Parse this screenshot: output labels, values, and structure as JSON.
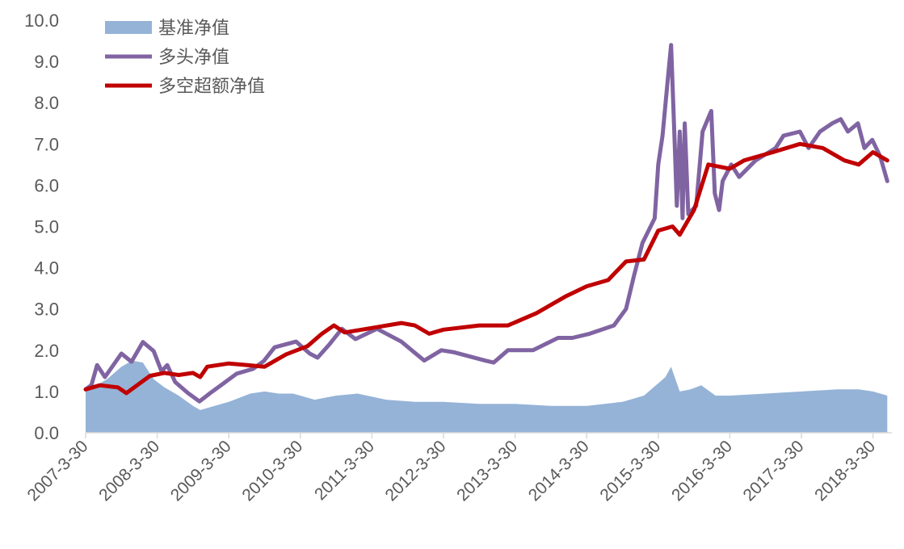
{
  "chart_data": {
    "type": "area+line",
    "title": "",
    "xlabel": "",
    "ylabel": "",
    "ylim": [
      0,
      10
    ],
    "xlim": [
      2007.25,
      2018.48
    ],
    "grid": false,
    "legend_position": "top-left",
    "y_ticks": [
      "0.0",
      "1.0",
      "2.0",
      "3.0",
      "4.0",
      "5.0",
      "6.0",
      "7.0",
      "8.0",
      "9.0",
      "10.0"
    ],
    "x_ticks": [
      {
        "label": "2007-3-30",
        "x": 2007.25
      },
      {
        "label": "2008-3-30",
        "x": 2008.25
      },
      {
        "label": "2009-3-30",
        "x": 2009.25
      },
      {
        "label": "2010-3-30",
        "x": 2010.25
      },
      {
        "label": "2011-3-30",
        "x": 2011.25
      },
      {
        "label": "2012-3-30",
        "x": 2012.25
      },
      {
        "label": "2013-3-30",
        "x": 2013.25
      },
      {
        "label": "2014-3-30",
        "x": 2014.25
      },
      {
        "label": "2015-3-30",
        "x": 2015.25
      },
      {
        "label": "2016-3-30",
        "x": 2016.25
      },
      {
        "label": "2017-3-30",
        "x": 2017.25
      },
      {
        "label": "2018-3-30",
        "x": 2018.25
      }
    ],
    "series": [
      {
        "name": "基准净值",
        "kind": "area",
        "color": "#95B3D7",
        "points": [
          [
            0,
            1.0
          ],
          [
            0.15,
            1.15
          ],
          [
            0.3,
            1.3
          ],
          [
            0.5,
            1.6
          ],
          [
            0.65,
            1.75
          ],
          [
            0.8,
            1.7
          ],
          [
            0.95,
            1.3
          ],
          [
            1.1,
            1.1
          ],
          [
            1.3,
            0.9
          ],
          [
            1.5,
            0.65
          ],
          [
            1.6,
            0.55
          ],
          [
            1.8,
            0.65
          ],
          [
            2.0,
            0.75
          ],
          [
            2.3,
            0.95
          ],
          [
            2.5,
            1.0
          ],
          [
            2.7,
            0.95
          ],
          [
            2.9,
            0.95
          ],
          [
            3.2,
            0.8
          ],
          [
            3.5,
            0.9
          ],
          [
            3.8,
            0.95
          ],
          [
            4.2,
            0.8
          ],
          [
            4.6,
            0.75
          ],
          [
            5.0,
            0.75
          ],
          [
            5.5,
            0.7
          ],
          [
            6.0,
            0.7
          ],
          [
            6.5,
            0.65
          ],
          [
            7.0,
            0.65
          ],
          [
            7.5,
            0.75
          ],
          [
            7.8,
            0.9
          ],
          [
            8.0,
            1.2
          ],
          [
            8.1,
            1.35
          ],
          [
            8.18,
            1.6
          ],
          [
            8.3,
            1.0
          ],
          [
            8.45,
            1.05
          ],
          [
            8.6,
            1.15
          ],
          [
            8.8,
            0.9
          ],
          [
            9.0,
            0.9
          ],
          [
            9.5,
            0.95
          ],
          [
            10.0,
            1.0
          ],
          [
            10.5,
            1.05
          ],
          [
            10.8,
            1.05
          ],
          [
            11.0,
            1.0
          ],
          [
            11.2,
            0.9
          ]
        ]
      },
      {
        "name": "多头净值",
        "kind": "line",
        "color": "#8064A2",
        "points": [
          [
            0,
            1.05
          ],
          [
            0.08,
            1.15
          ],
          [
            0.16,
            1.64
          ],
          [
            0.27,
            1.35
          ],
          [
            0.5,
            1.92
          ],
          [
            0.64,
            1.72
          ],
          [
            0.8,
            2.2
          ],
          [
            0.95,
            1.98
          ],
          [
            1.06,
            1.49
          ],
          [
            1.14,
            1.64
          ],
          [
            1.25,
            1.23
          ],
          [
            1.43,
            0.96
          ],
          [
            1.59,
            0.76
          ],
          [
            1.74,
            0.96
          ],
          [
            1.89,
            1.15
          ],
          [
            2.11,
            1.43
          ],
          [
            2.34,
            1.55
          ],
          [
            2.49,
            1.74
          ],
          [
            2.64,
            2.07
          ],
          [
            2.94,
            2.21
          ],
          [
            3.13,
            1.92
          ],
          [
            3.24,
            1.82
          ],
          [
            3.4,
            2.13
          ],
          [
            3.58,
            2.52
          ],
          [
            3.77,
            2.27
          ],
          [
            4.07,
            2.52
          ],
          [
            4.41,
            2.21
          ],
          [
            4.73,
            1.75
          ],
          [
            4.97,
            2.0
          ],
          [
            5.15,
            1.95
          ],
          [
            5.58,
            1.75
          ],
          [
            5.7,
            1.7
          ],
          [
            5.9,
            2.0
          ],
          [
            6.25,
            2.0
          ],
          [
            6.6,
            2.3
          ],
          [
            6.8,
            2.3
          ],
          [
            7.04,
            2.4
          ],
          [
            7.38,
            2.6
          ],
          [
            7.55,
            3.0
          ],
          [
            7.66,
            3.8
          ],
          [
            7.78,
            4.6
          ],
          [
            7.95,
            5.2
          ],
          [
            8.0,
            6.5
          ],
          [
            8.06,
            7.2
          ],
          [
            8.13,
            8.5
          ],
          [
            8.18,
            9.4
          ],
          [
            8.23,
            7.0
          ],
          [
            8.26,
            5.5
          ],
          [
            8.3,
            7.3
          ],
          [
            8.34,
            5.2
          ],
          [
            8.37,
            7.5
          ],
          [
            8.42,
            5.3
          ],
          [
            8.53,
            5.5
          ],
          [
            8.62,
            7.3
          ],
          [
            8.74,
            7.8
          ],
          [
            8.79,
            5.8
          ],
          [
            8.85,
            5.4
          ],
          [
            8.9,
            6.1
          ],
          [
            9.02,
            6.5
          ],
          [
            9.13,
            6.2
          ],
          [
            9.36,
            6.6
          ],
          [
            9.64,
            6.9
          ],
          [
            9.75,
            7.2
          ],
          [
            9.98,
            7.3
          ],
          [
            10.1,
            6.9
          ],
          [
            10.26,
            7.3
          ],
          [
            10.43,
            7.5
          ],
          [
            10.55,
            7.6
          ],
          [
            10.65,
            7.3
          ],
          [
            10.79,
            7.5
          ],
          [
            10.88,
            6.9
          ],
          [
            10.99,
            7.1
          ],
          [
            11.1,
            6.7
          ],
          [
            11.2,
            6.1
          ]
        ]
      },
      {
        "name": "多空超额净值",
        "kind": "line",
        "color": "#C00000",
        "points": [
          [
            0,
            1.05
          ],
          [
            0.2,
            1.15
          ],
          [
            0.45,
            1.1
          ],
          [
            0.57,
            0.96
          ],
          [
            0.9,
            1.38
          ],
          [
            1.1,
            1.45
          ],
          [
            1.3,
            1.4
          ],
          [
            1.5,
            1.45
          ],
          [
            1.6,
            1.35
          ],
          [
            1.7,
            1.6
          ],
          [
            2.0,
            1.68
          ],
          [
            2.2,
            1.65
          ],
          [
            2.5,
            1.6
          ],
          [
            2.8,
            1.9
          ],
          [
            3.1,
            2.1
          ],
          [
            3.3,
            2.4
          ],
          [
            3.47,
            2.6
          ],
          [
            3.62,
            2.43
          ],
          [
            4.07,
            2.56
          ],
          [
            4.41,
            2.66
          ],
          [
            4.6,
            2.6
          ],
          [
            4.8,
            2.4
          ],
          [
            5.0,
            2.5
          ],
          [
            5.5,
            2.6
          ],
          [
            5.9,
            2.6
          ],
          [
            6.3,
            2.9
          ],
          [
            6.7,
            3.3
          ],
          [
            7.0,
            3.55
          ],
          [
            7.3,
            3.7
          ],
          [
            7.55,
            4.15
          ],
          [
            7.8,
            4.2
          ],
          [
            8.0,
            4.9
          ],
          [
            8.2,
            5.0
          ],
          [
            8.3,
            4.8
          ],
          [
            8.5,
            5.4
          ],
          [
            8.7,
            6.5
          ],
          [
            9.0,
            6.4
          ],
          [
            9.2,
            6.6
          ],
          [
            9.6,
            6.8
          ],
          [
            9.98,
            7.0
          ],
          [
            10.3,
            6.9
          ],
          [
            10.6,
            6.6
          ],
          [
            10.8,
            6.5
          ],
          [
            11.0,
            6.8
          ],
          [
            11.2,
            6.6
          ]
        ]
      }
    ]
  }
}
